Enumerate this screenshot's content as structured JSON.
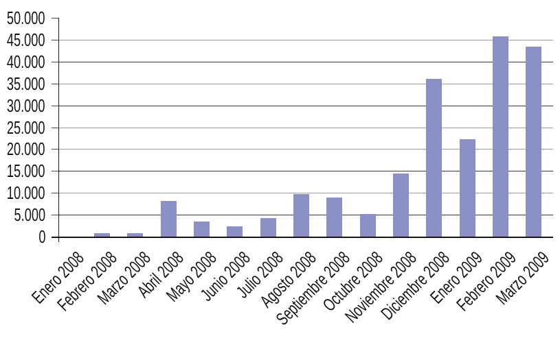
{
  "chart_data": {
    "type": "bar",
    "title": "",
    "xlabel": "",
    "ylabel": "",
    "categories": [
      "Enero 2008",
      "Febrero 2008",
      "Marzo 2008",
      "Abril 2008",
      "Mayo 2008",
      "Junio 2008",
      "Julio 2008",
      "Agosto 2008",
      "Septiembre 2008",
      "Octubre 2008",
      "Noviembre 2008",
      "Diciembre 2008",
      "Enero 2009",
      "Febrero 2009",
      "Marzo 2009"
    ],
    "values": [
      0,
      800,
      800,
      8200,
      3500,
      2400,
      4300,
      9700,
      8900,
      5200,
      14400,
      36000,
      22300,
      45800,
      43400
    ],
    "ylim": [
      0,
      50000
    ],
    "ytick_step": 5000,
    "ytick_labels": [
      "0",
      "5.000",
      "10.000",
      "15.000",
      "20.000",
      "25.000",
      "30.000",
      "35.000",
      "40.000",
      "45.000",
      "50.000"
    ],
    "grid": true,
    "legend": false,
    "bar_color": "#8a90c6",
    "gridline_color": "#9e9e9e",
    "gridline_color_alt": "#3a3a3a",
    "axis_color": "#1a1a1a",
    "label_color": "#141414"
  }
}
